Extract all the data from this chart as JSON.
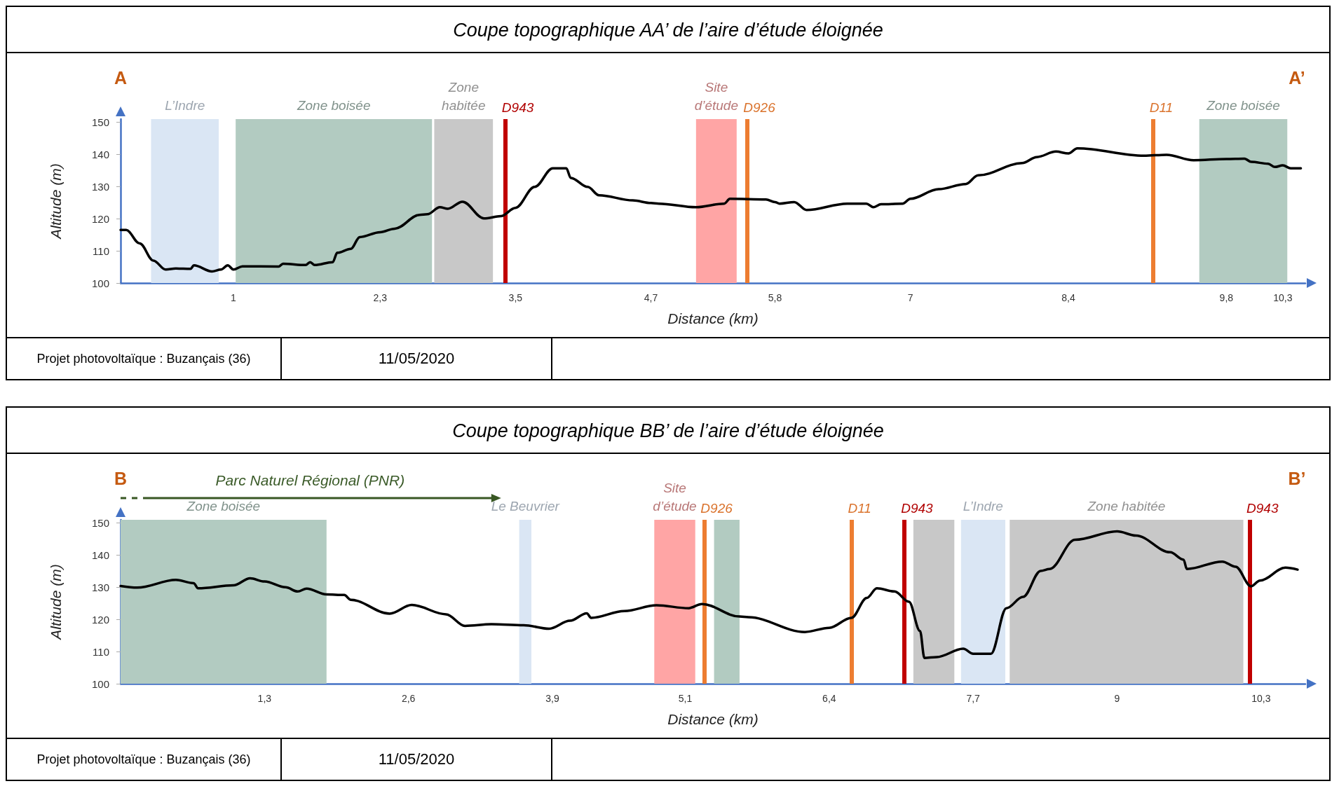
{
  "chart_data": [
    {
      "type": "line",
      "title": "Coupe topographique AA’ de l’aire d’étude éloignée",
      "xlabel": "Distance (km)",
      "ylabel": "Altitude (m)",
      "x": [
        0,
        0.05,
        0.17,
        0.29,
        0.4,
        0.49,
        0.62,
        0.65,
        0.81,
        0.89,
        0.95,
        1,
        1.08,
        1.4,
        1.44,
        1.64,
        1.68,
        1.72,
        1.88,
        1.92,
        2.04,
        2.12,
        2.3,
        2.43,
        2.65,
        2.72,
        2.83,
        2.9,
        3.03,
        3.22,
        3.37,
        3.5,
        3.67,
        3.83,
        3.95,
        3.99,
        4.14,
        4.24,
        4.54,
        4.7,
        4.77,
        5.1,
        5.35,
        5.4,
        5.72,
        5.8,
        5.84,
        5.97,
        6.08,
        6.44,
        6.61,
        6.67,
        6.74,
        6.93,
        7,
        7.25,
        7.49,
        7.6,
        7.99,
        8.12,
        8.29,
        8.4,
        8.48,
        9.07,
        9.27,
        9.51,
        9.8,
        9.96,
        10.02,
        10.17,
        10.23,
        10.3,
        10.37,
        10.46
      ],
      "series": [
        {
          "color": "#000000",
          "values": [
            116.5,
            116.5,
            112.3,
            107,
            104.2,
            104.5,
            104.4,
            105.5,
            103.6,
            104.2,
            105.5,
            104.2,
            105.2,
            105.1,
            106,
            105.6,
            106.5,
            105.6,
            106.5,
            109.4,
            110.6,
            114.3,
            115.8,
            116.9,
            121.2,
            121.4,
            123.6,
            123.1,
            125.3,
            120.1,
            120.8,
            123.4,
            129.9,
            135.7,
            135.7,
            132.7,
            129.9,
            127.3,
            125.7,
            124.9,
            124.7,
            123.6,
            124.7,
            126.2,
            126,
            125.2,
            124.7,
            125.2,
            122.7,
            124.7,
            124.7,
            123.6,
            124.5,
            124.7,
            126.2,
            129.2,
            130.8,
            133.5,
            137.3,
            139.2,
            140.9,
            140.3,
            141.9,
            139.6,
            139.9,
            138.2,
            138.6,
            138.7,
            137.7,
            137.1,
            136.1,
            136.6,
            135.7,
            135.7
          ]
        }
      ],
      "xlim": [
        0,
        10.5
      ],
      "xticks": [
        1,
        {
          "value": 2.3,
          "label": "2,3"
        },
        {
          "value": 3.5,
          "label": "3,5"
        },
        {
          "value": 4.7,
          "label": "4,7"
        },
        {
          "value": 5.8,
          "label": "5,8"
        },
        7,
        {
          "value": 8.4,
          "label": "8,4"
        },
        {
          "value": 9.8,
          "label": "9,8"
        },
        {
          "value": 10.3,
          "label": "10,3"
        }
      ],
      "ylim": [
        100,
        151
      ],
      "yticks": [
        100,
        110,
        120,
        130,
        140,
        150
      ],
      "grid": false,
      "marker": "none",
      "line_style": "solid",
      "bands": [
        {
          "axis": "x",
          "from": 0.27,
          "to": 0.87,
          "label": "L’Indre",
          "color": "#dae6f4"
        },
        {
          "axis": "x",
          "from": 1.02,
          "to": 2.76,
          "label": "Zone boisée",
          "color": "#b2cbc1"
        },
        {
          "axis": "x",
          "from": 2.78,
          "to": 3.3,
          "label": "Zone habitée",
          "color": "#c8c8c8"
        },
        {
          "axis": "x",
          "from": 5.1,
          "to": 5.46,
          "label": "Site d’étude",
          "color": "#ffa5a5"
        },
        {
          "axis": "x",
          "from": 9.56,
          "to": 10.34,
          "label": "Zone boisée",
          "color": "#b2cbc1"
        }
      ],
      "ref_lines": [
        {
          "axis": "x",
          "value": 3.41,
          "label": "D943",
          "color": "#c00000"
        },
        {
          "axis": "x",
          "value": 5.55,
          "label": "D926",
          "color": "#ed7d31"
        },
        {
          "axis": "x",
          "value": 9.15,
          "label": "D11",
          "color": "#ed7d31"
        }
      ],
      "annotations": [
        "A",
        "A’",
        "Projet photovoltaïque : Buzançais (36)",
        "11/05/2020"
      ]
    },
    {
      "type": "line",
      "title": "Coupe topographique BB’ de l’aire d’étude éloignée",
      "xlabel": "Distance (km)",
      "ylabel": "Altitude (m)",
      "x": [
        0,
        0.15,
        0.5,
        0.66,
        0.7,
        1.02,
        1.17,
        1.3,
        1.49,
        1.6,
        1.68,
        1.86,
        2.02,
        2.08,
        2.43,
        2.63,
        2.94,
        3.11,
        3.35,
        3.64,
        3.87,
        4.06,
        4.21,
        4.25,
        4.55,
        4.84,
        5.13,
        5.25,
        5.59,
        5.67,
        6.18,
        6.4,
        6.6,
        6.74,
        6.83,
        6.99,
        7.12,
        7.22,
        7.26,
        7.37,
        7.61,
        7.7,
        7.86,
        8,
        8.15,
        8.31,
        8.39,
        8.62,
        9,
        9.17,
        9.48,
        9.6,
        9.63,
        9.95,
        10.07,
        10.21,
        10.29,
        10.52,
        10.63
      ],
      "series": [
        {
          "color": "#000000",
          "values": [
            130.4,
            129.9,
            132.3,
            131.3,
            129.7,
            130.6,
            132.8,
            131.8,
            130,
            128.7,
            129.6,
            127.8,
            127.6,
            126.1,
            121.8,
            124.5,
            121.6,
            118,
            118.5,
            118.2,
            117.1,
            119.6,
            121.9,
            120.5,
            122.6,
            124.4,
            123.5,
            124.8,
            120.9,
            120.7,
            116.1,
            117.4,
            120.5,
            126.7,
            129.7,
            128.7,
            125.5,
            116.4,
            108,
            108.3,
            110.9,
            109.3,
            109.3,
            123.5,
            127,
            135.1,
            135.7,
            144.8,
            147.4,
            146.1,
            140.9,
            138.6,
            135.7,
            138,
            136.4,
            130.3,
            132.1,
            136.1,
            135.5
          ]
        }
      ],
      "xlim": [
        0,
        10.7
      ],
      "xticks": [
        {
          "value": 1.3,
          "label": "1,3"
        },
        {
          "value": 2.6,
          "label": "2,6"
        },
        {
          "value": 3.9,
          "label": "3,9"
        },
        {
          "value": 5.1,
          "label": "5,1"
        },
        {
          "value": 6.4,
          "label": "6,4"
        },
        {
          "value": 7.7,
          "label": "7,7"
        },
        9,
        {
          "value": 10.3,
          "label": "10,3"
        }
      ],
      "ylim": [
        100,
        151
      ],
      "yticks": [
        100,
        110,
        120,
        130,
        140,
        150
      ],
      "grid": false,
      "marker": "none",
      "line_style": "solid",
      "bands": [
        {
          "axis": "x",
          "from": 0,
          "to": 1.86,
          "label": "Zone boisée",
          "color": "#b2cbc1"
        },
        {
          "axis": "x",
          "from": 3.6,
          "to": 3.71,
          "label": "Le Beuvrier",
          "color": "#dae6f4"
        },
        {
          "axis": "x",
          "from": 4.82,
          "to": 5.19,
          "label": "Site d’étude",
          "color": "#ffa5a5"
        },
        {
          "axis": "x",
          "from": 5.36,
          "to": 5.59,
          "color": "#b2cbc1"
        },
        {
          "axis": "x",
          "from": 7.16,
          "to": 7.53,
          "color": "#c8c8c8"
        },
        {
          "axis": "x",
          "from": 7.59,
          "to": 7.99,
          "label": "L’Indre",
          "color": "#dae6f4"
        },
        {
          "axis": "x",
          "from": 8.03,
          "to": 10.14,
          "label": "Zone habitée",
          "color": "#c8c8c8"
        }
      ],
      "ref_lines": [
        {
          "axis": "x",
          "value": 5.27,
          "label": "D926",
          "color": "#ed7d31"
        },
        {
          "axis": "x",
          "value": 6.6,
          "label": "D11",
          "color": "#ed7d31"
        },
        {
          "axis": "x",
          "value": 7.08,
          "label": "D943",
          "color": "#c00000"
        },
        {
          "axis": "x",
          "value": 10.2,
          "label": "D943",
          "color": "#c00000"
        }
      ],
      "annotations": [
        "B",
        "B’",
        "Parc Naturel Régional (PNR)",
        "Projet photovoltaïque : Buzançais (36)",
        "11/05/2020"
      ]
    }
  ]
}
